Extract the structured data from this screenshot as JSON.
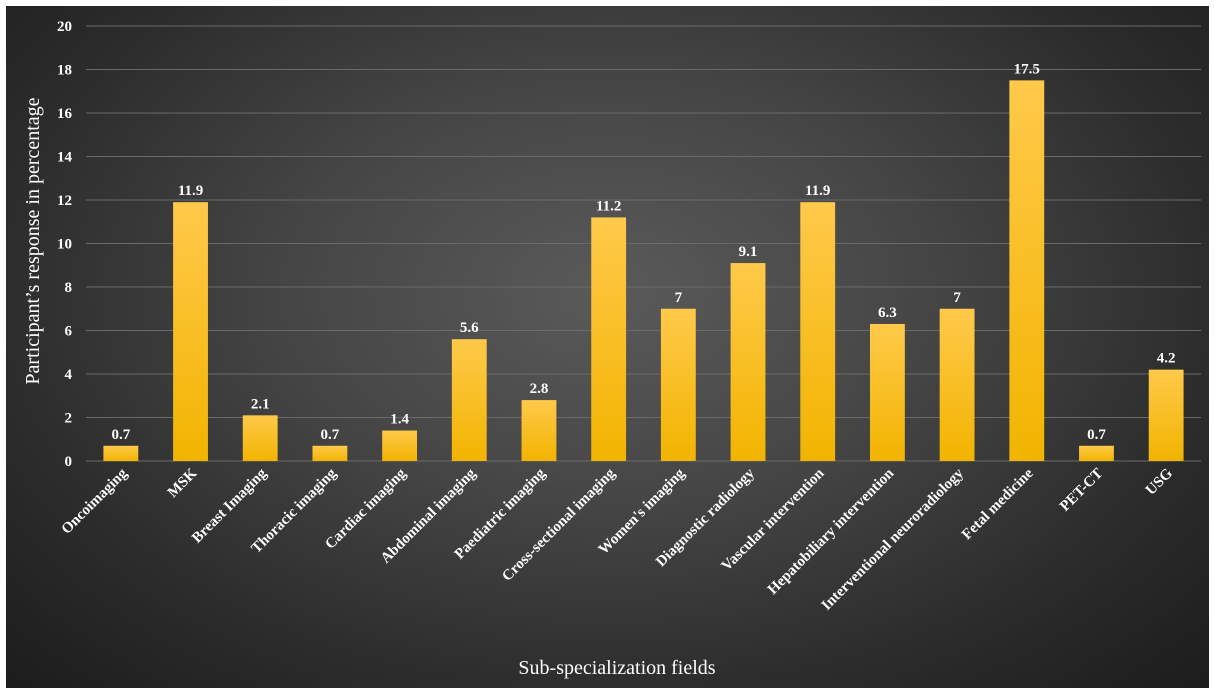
{
  "chart_data": {
    "type": "bar",
    "categories": [
      "Oncoimaging",
      "MSK",
      "Breast Imaging",
      "Thoracic imaging",
      "Cardiac imaging",
      "Abdominal imaging",
      "Paediatric imaging",
      "Cross-sectional imaging",
      "Women's imaging",
      "Diagnostic radiology",
      "Vascular intervention",
      "Hepatobiliary intervention",
      "Interventional neuroradiology",
      "Fetal medicine",
      "PET-CT",
      "USG"
    ],
    "values": [
      0.7,
      11.9,
      2.1,
      0.7,
      1.4,
      5.6,
      2.8,
      11.2,
      7,
      9.1,
      11.9,
      6.3,
      7,
      17.5,
      0.7,
      4.2
    ],
    "value_labels": [
      "0.7",
      "11.9",
      "2.1",
      "0.7",
      "1.4",
      "5.6",
      "2.8",
      "11.2",
      "7",
      "9.1",
      "11.9",
      "6.3",
      "7",
      "17.5",
      "0.7",
      "4.2"
    ],
    "title": "",
    "xlabel": "Sub-specialization fields",
    "ylabel": "Participant’s response in percentage",
    "ylim": [
      0,
      20
    ],
    "yticks": [
      0,
      2,
      4,
      6,
      8,
      10,
      12,
      14,
      16,
      18,
      20
    ],
    "grid": true,
    "legend": "none",
    "colors": {
      "bar_top": "#ffc94a",
      "bar_bottom": "#f2b400",
      "grid": "#6a6a6a",
      "text": "#ffffff"
    }
  }
}
